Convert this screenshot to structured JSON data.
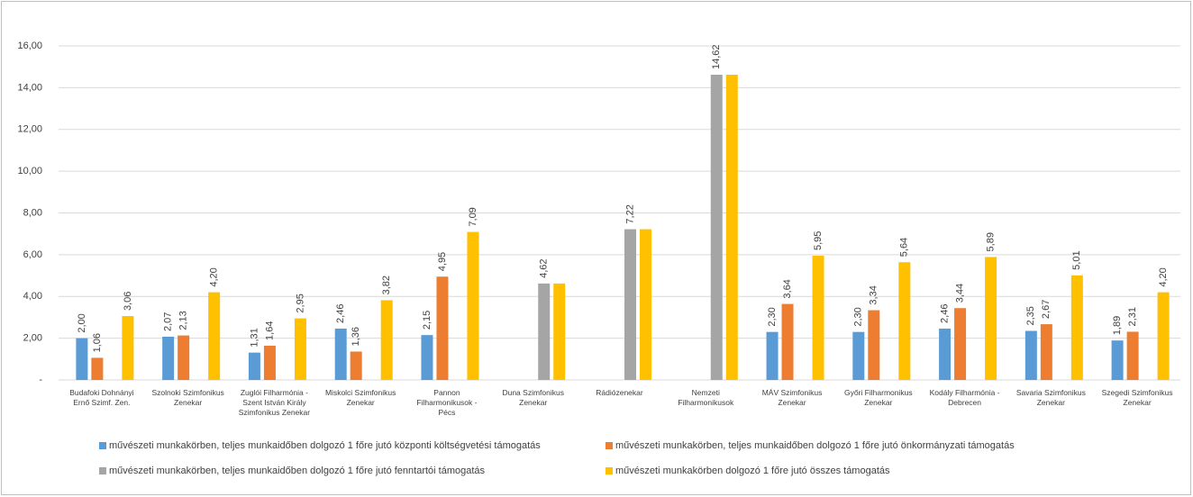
{
  "chart_data": {
    "type": "bar",
    "categories": [
      "Budafoki Dohnányi Ernő Szimf. Zen.",
      "Szolnoki Szimfonikus Zenekar",
      "Zuglói Filharmónia - Szent István Király Szimfonikus Zenekar",
      "Miskolci Szimfonikus Zenekar",
      "Pannon Filharmonikusok - Pécs",
      "Duna Szimfonikus Zenekar",
      "Rádiózenekar",
      "Nemzeti Filharmonikusok",
      "MÁV Szimfonikus Zenekar",
      "Győri Filharmonikus Zenekar",
      "Kodály Filharmónia - Debrecen",
      "Savaria Szimfonikus Zenekar",
      "Szegedi Szimfonikus Zenekar"
    ],
    "series": [
      {
        "name": "művészeti munkakörben, teljes munkaidőben  dolgozó 1 főre jutó központi költségvetési támogatás",
        "color": "#5b9bd5",
        "values": [
          2.0,
          2.07,
          1.31,
          2.46,
          2.15,
          null,
          null,
          null,
          2.3,
          2.3,
          2.46,
          2.35,
          1.89
        ],
        "value_labels": [
          "2,00",
          "2,07",
          "1,31",
          "2,46",
          "2,15",
          null,
          null,
          null,
          "2,30",
          "2,30",
          "2,46",
          "2,35",
          "1,89"
        ]
      },
      {
        "name": "művészeti munkakörben, teljes munkaidőben dolgozó 1 főre jutó önkormányzati támogatás",
        "color": "#ed7d31",
        "values": [
          1.06,
          2.13,
          1.64,
          1.36,
          4.95,
          null,
          null,
          null,
          3.64,
          3.34,
          3.44,
          2.67,
          2.31
        ],
        "value_labels": [
          "1,06",
          "2,13",
          "1,64",
          "1,36",
          "4,95",
          null,
          null,
          null,
          "3,64",
          "3,34",
          "3,44",
          "2,67",
          "2,31"
        ]
      },
      {
        "name": "művészeti munkakörben, teljes munkaidőben dolgozó 1 főre jutó fenntartói támogatás",
        "color": "#a5a5a5",
        "values": [
          null,
          null,
          null,
          null,
          null,
          4.62,
          7.22,
          14.62,
          null,
          null,
          null,
          null,
          null
        ],
        "value_labels": [
          null,
          null,
          null,
          null,
          null,
          "4,62",
          "7,22",
          "14,62",
          null,
          null,
          null,
          null,
          null
        ]
      },
      {
        "name": "művészeti munkakörben dolgozó 1 főre jutó összes támogatás",
        "color": "#ffc000",
        "values": [
          3.06,
          4.2,
          2.95,
          3.82,
          7.09,
          4.62,
          7.22,
          14.62,
          5.95,
          5.64,
          5.89,
          5.01,
          4.2
        ],
        "value_labels": [
          "3,06",
          "4,20",
          "2,95",
          "3,82",
          "7,09",
          null,
          null,
          null,
          "5,95",
          "5,64",
          "5,89",
          "5,01",
          "4,20"
        ]
      }
    ],
    "ylim": [
      0,
      16
    ],
    "yticks": [
      {
        "value": 0,
        "label": "-"
      },
      {
        "value": 2,
        "label": "2,00"
      },
      {
        "value": 4,
        "label": "4,00"
      },
      {
        "value": 6,
        "label": "6,00"
      },
      {
        "value": 8,
        "label": "8,00"
      },
      {
        "value": 10,
        "label": "10,00"
      },
      {
        "value": 12,
        "label": "12,00"
      },
      {
        "value": 14,
        "label": "14,00"
      },
      {
        "value": 16,
        "label": "16,00"
      }
    ],
    "grid": true
  }
}
